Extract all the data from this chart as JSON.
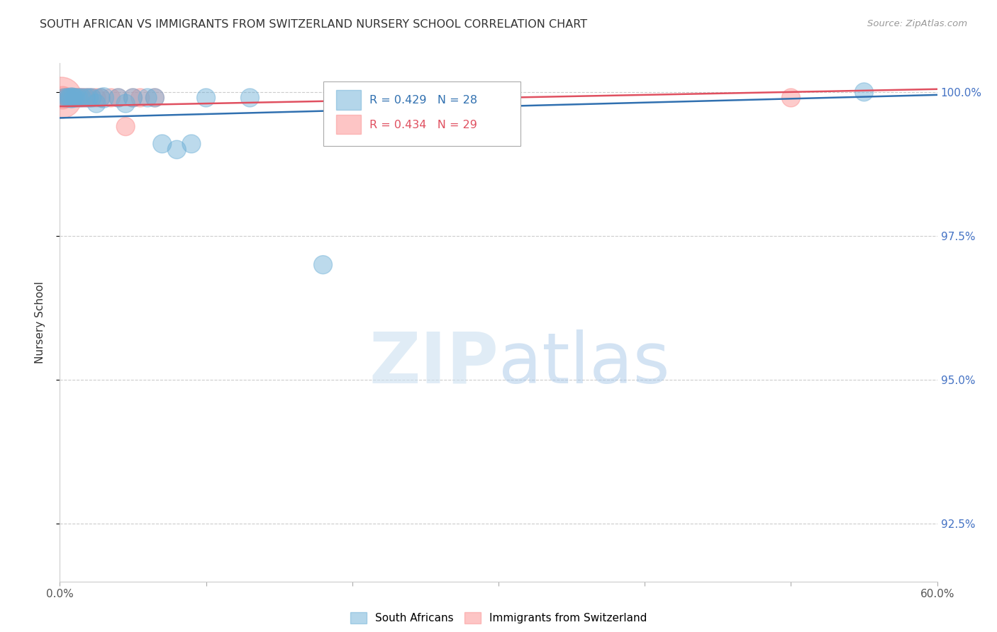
{
  "title": "SOUTH AFRICAN VS IMMIGRANTS FROM SWITZERLAND NURSERY SCHOOL CORRELATION CHART",
  "source": "Source: ZipAtlas.com",
  "ylabel": "Nursery School",
  "xlim": [
    0.0,
    0.6
  ],
  "ylim": [
    0.915,
    1.005
  ],
  "xticks": [
    0.0,
    0.1,
    0.2,
    0.3,
    0.4,
    0.5,
    0.6
  ],
  "xticklabels": [
    "0.0%",
    "",
    "",
    "",
    "",
    "",
    "60.0%"
  ],
  "yticks": [
    0.925,
    0.95,
    0.975,
    1.0
  ],
  "yticklabels": [
    "92.5%",
    "95.0%",
    "97.5%",
    "100.0%"
  ],
  "legend_r_blue": "R = 0.429",
  "legend_n_blue": "N = 28",
  "legend_r_pink": "R = 0.434",
  "legend_n_pink": "N = 29",
  "blue_color": "#6baed6",
  "pink_color": "#fc8d8d",
  "trendline_blue_color": "#3070b0",
  "trendline_pink_color": "#e05060",
  "background_color": "#ffffff",
  "south_african_x": [
    0.003,
    0.005,
    0.006,
    0.007,
    0.008,
    0.009,
    0.01,
    0.011,
    0.013,
    0.015,
    0.018,
    0.02,
    0.022,
    0.025,
    0.028,
    0.03,
    0.04,
    0.045,
    0.05,
    0.06,
    0.065,
    0.07,
    0.08,
    0.09,
    0.1,
    0.13,
    0.18,
    0.55
  ],
  "south_african_y": [
    0.999,
    0.999,
    0.999,
    0.999,
    0.999,
    0.999,
    0.999,
    0.999,
    0.999,
    0.999,
    0.999,
    0.999,
    0.999,
    0.998,
    0.999,
    0.999,
    0.999,
    0.998,
    0.999,
    0.999,
    0.999,
    0.991,
    0.99,
    0.991,
    0.999,
    0.999,
    0.97,
    1.0
  ],
  "south_african_sizes": [
    10,
    10,
    10,
    10,
    12,
    10,
    10,
    10,
    10,
    10,
    10,
    10,
    10,
    10,
    10,
    12,
    10,
    10,
    10,
    10,
    10,
    10,
    10,
    10,
    10,
    10,
    10,
    10
  ],
  "swiss_x": [
    0.001,
    0.002,
    0.003,
    0.004,
    0.005,
    0.005,
    0.006,
    0.007,
    0.008,
    0.009,
    0.009,
    0.01,
    0.011,
    0.012,
    0.013,
    0.015,
    0.016,
    0.018,
    0.02,
    0.022,
    0.025,
    0.028,
    0.035,
    0.04,
    0.045,
    0.05,
    0.055,
    0.065,
    0.5
  ],
  "swiss_y": [
    0.999,
    0.999,
    0.999,
    0.999,
    0.999,
    0.999,
    0.999,
    0.999,
    0.999,
    0.999,
    0.999,
    0.999,
    0.999,
    0.999,
    0.999,
    0.999,
    0.999,
    0.999,
    0.999,
    0.999,
    0.999,
    0.999,
    0.999,
    0.999,
    0.994,
    0.999,
    0.999,
    0.999,
    0.999
  ],
  "swiss_sizes": [
    50,
    15,
    10,
    10,
    10,
    10,
    10,
    10,
    10,
    10,
    10,
    10,
    10,
    10,
    10,
    10,
    10,
    10,
    10,
    10,
    10,
    10,
    10,
    10,
    10,
    10,
    10,
    10,
    10
  ],
  "trendline_blue_x0": 0.0,
  "trendline_blue_y0": 0.9955,
  "trendline_blue_x1": 0.6,
  "trendline_blue_y1": 0.9995,
  "trendline_pink_x0": 0.0,
  "trendline_pink_y0": 0.9975,
  "trendline_pink_x1": 0.6,
  "trendline_pink_y1": 1.0005
}
